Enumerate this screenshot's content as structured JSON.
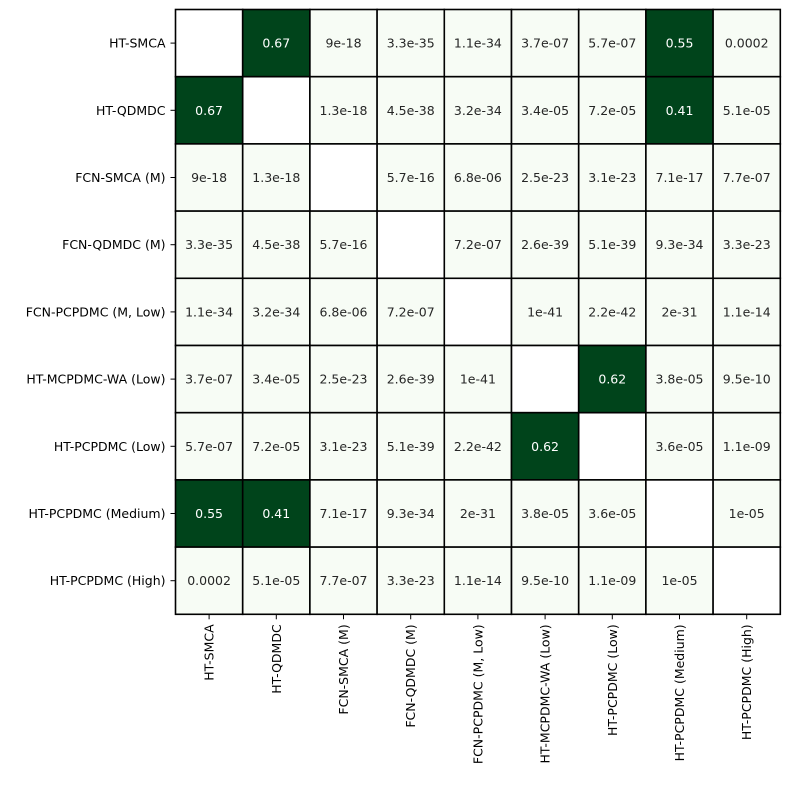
{
  "chart_data": {
    "type": "heatmap",
    "title": "",
    "xlabel": "",
    "ylabel": "",
    "labels": [
      "HT-SMCA",
      "HT-QDMDC",
      "FCN-SMCA (M)",
      "FCN-QDMDC (M)",
      "FCN-PCPDMC (M, Low)",
      "HT-MCPDMC-WA (Low)",
      "HT-PCPDMC (Low)",
      "HT-PCPDMC (Medium)",
      "HT-PCPDMC (High)"
    ],
    "display": [
      [
        "",
        "0.67",
        "9e-18",
        "3.3e-35",
        "1.1e-34",
        "3.7e-07",
        "5.7e-07",
        "0.55",
        "0.0002"
      ],
      [
        "0.67",
        "",
        "1.3e-18",
        "4.5e-38",
        "3.2e-34",
        "3.4e-05",
        "7.2e-05",
        "0.41",
        "5.1e-05"
      ],
      [
        "9e-18",
        "1.3e-18",
        "",
        "5.7e-16",
        "6.8e-06",
        "2.5e-23",
        "3.1e-23",
        "7.1e-17",
        "7.7e-07"
      ],
      [
        "3.3e-35",
        "4.5e-38",
        "5.7e-16",
        "",
        "7.2e-07",
        "2.6e-39",
        "5.1e-39",
        "9.3e-34",
        "3.3e-23"
      ],
      [
        "1.1e-34",
        "3.2e-34",
        "6.8e-06",
        "7.2e-07",
        "",
        "1e-41",
        "2.2e-42",
        "2e-31",
        "1.1e-14"
      ],
      [
        "3.7e-07",
        "3.4e-05",
        "2.5e-23",
        "2.6e-39",
        "1e-41",
        "",
        "0.62",
        "3.8e-05",
        "9.5e-10"
      ],
      [
        "5.7e-07",
        "7.2e-05",
        "3.1e-23",
        "5.1e-39",
        "2.2e-42",
        "0.62",
        "",
        "3.6e-05",
        "1.1e-09"
      ],
      [
        "0.55",
        "0.41",
        "7.1e-17",
        "9.3e-34",
        "2e-31",
        "3.8e-05",
        "3.6e-05",
        "",
        "1e-05"
      ],
      [
        "0.0002",
        "5.1e-05",
        "7.7e-07",
        "3.3e-23",
        "1.1e-14",
        "9.5e-10",
        "1.1e-09",
        "1e-05",
        ""
      ]
    ],
    "threshold": 0.05,
    "colors": {
      "significant": "#00441b",
      "not_significant": "#f7fcf5",
      "diagonal": "#ffffff",
      "grid": "#000000",
      "text_dark": "#262626",
      "text_light": "#ffffff"
    }
  }
}
